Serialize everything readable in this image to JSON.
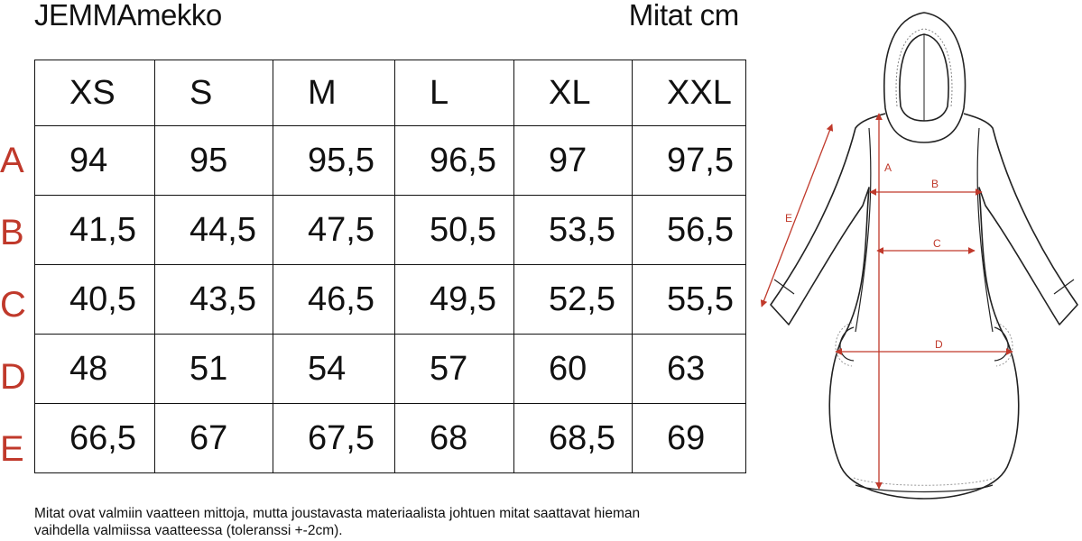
{
  "header": {
    "title": "JEMMAmekko",
    "units": "Mitat cm"
  },
  "table": {
    "sizes": [
      "XS",
      "S",
      "M",
      "L",
      "XL",
      "XXL"
    ],
    "rows": [
      {
        "label": "A",
        "values": [
          "94",
          "95",
          "95,5",
          "96,5",
          "97",
          "97,5"
        ]
      },
      {
        "label": "B",
        "values": [
          "41,5",
          "44,5",
          "47,5",
          "50,5",
          "53,5",
          "56,5"
        ]
      },
      {
        "label": "C",
        "values": [
          "40,5",
          "43,5",
          "46,5",
          "49,5",
          "52,5",
          "55,5"
        ]
      },
      {
        "label": "D",
        "values": [
          "48",
          "51",
          "54",
          "57",
          "60",
          "63"
        ]
      },
      {
        "label": "E",
        "values": [
          "66,5",
          "67",
          "67,5",
          "68",
          "68,5",
          "69"
        ]
      }
    ]
  },
  "note": {
    "line1": "Mitat ovat valmiin vaatteen mittoja, mutta joustavasta materiaalista johtuen mitat saattavat hieman",
    "line2": "vaihdella valmiissa vaatteessa (toleranssi +-2cm)."
  },
  "figure": {
    "labels": {
      "a": "A",
      "b": "B",
      "c": "C",
      "d": "D",
      "e": "E"
    },
    "accent_color": "#c0392b"
  }
}
